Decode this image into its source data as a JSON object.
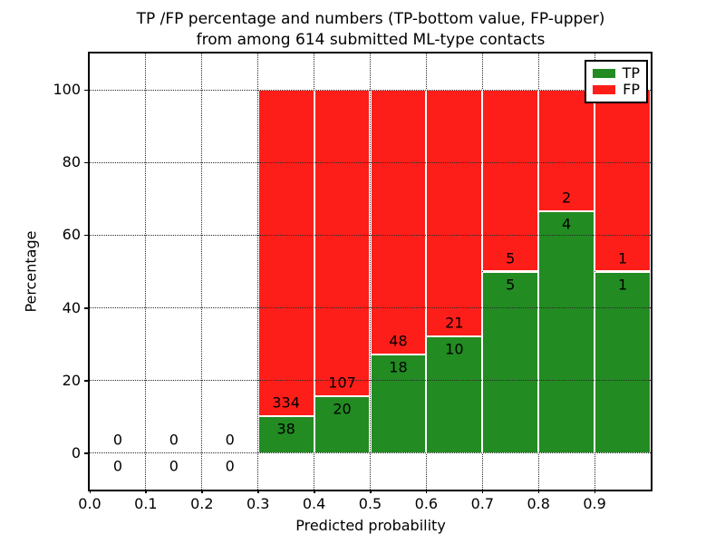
{
  "chart_data": {
    "type": "bar",
    "subtype": "stacked-percentage-histogram",
    "title_line1": "TP /FP percentage and numbers (TP-bottom value, FP-upper)",
    "title_line2": "from among 614 submitted ML-type contacts",
    "xlabel": "Predicted probability",
    "ylabel": "Percentage",
    "xlim": [
      0.0,
      1.0
    ],
    "ylim": [
      -10,
      110
    ],
    "bin_width": 0.1,
    "xticks": [
      "0.0",
      "0.1",
      "0.2",
      "0.3",
      "0.4",
      "0.5",
      "0.6",
      "0.7",
      "0.8",
      "0.9"
    ],
    "yticks": [
      "0",
      "20",
      "40",
      "60",
      "80",
      "100"
    ],
    "grid": true,
    "total_contacts": 614,
    "bins": [
      {
        "x0": 0.0,
        "tp": 0,
        "fp": 0
      },
      {
        "x0": 0.1,
        "tp": 0,
        "fp": 0
      },
      {
        "x0": 0.2,
        "tp": 0,
        "fp": 0
      },
      {
        "x0": 0.3,
        "tp": 38,
        "fp": 334
      },
      {
        "x0": 0.4,
        "tp": 20,
        "fp": 107
      },
      {
        "x0": 0.5,
        "tp": 18,
        "fp": 48
      },
      {
        "x0": 0.6,
        "tp": 10,
        "fp": 21
      },
      {
        "x0": 0.7,
        "tp": 5,
        "fp": 5
      },
      {
        "x0": 0.8,
        "tp": 4,
        "fp": 2
      },
      {
        "x0": 0.9,
        "tp": 1,
        "fp": 1
      }
    ],
    "colors": {
      "tp": "#228B22",
      "fp": "#FE1E19",
      "grid": "#2a2a2a",
      "axis": "#000000"
    },
    "legend": {
      "position": "upper right",
      "entries": [
        {
          "label": "TP",
          "color": "#228B22"
        },
        {
          "label": "FP",
          "color": "#FE1E19"
        }
      ]
    }
  }
}
